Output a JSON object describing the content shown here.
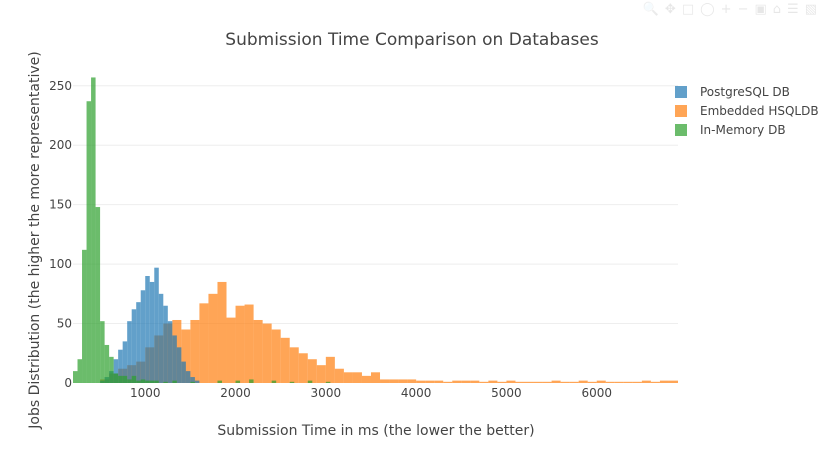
{
  "chart_data": {
    "type": "histogram",
    "title": "Submission Time Comparison on Databases",
    "xlabel": "Submission Time in ms (the lower the better)",
    "ylabel": "Jobs Distribution (the higher the more representative)",
    "xlim": [
      200,
      6900
    ],
    "ylim": [
      0,
      270
    ],
    "xticks": [
      1000,
      2000,
      3000,
      4000,
      5000,
      6000
    ],
    "yticks": [
      0,
      50,
      100,
      150,
      200,
      250
    ],
    "grid": true,
    "barmode": "overlay",
    "legend_position": "top-right",
    "series": [
      {
        "name": "PostgreSQL DB",
        "color": "#1f77b4",
        "bin_width": 50,
        "bins": [
          {
            "x0": 500,
            "v": 2
          },
          {
            "x0": 550,
            "v": 5
          },
          {
            "x0": 600,
            "v": 10
          },
          {
            "x0": 650,
            "v": 20
          },
          {
            "x0": 700,
            "v": 28
          },
          {
            "x0": 750,
            "v": 35
          },
          {
            "x0": 800,
            "v": 52
          },
          {
            "x0": 850,
            "v": 62
          },
          {
            "x0": 900,
            "v": 68
          },
          {
            "x0": 950,
            "v": 78
          },
          {
            "x0": 1000,
            "v": 90
          },
          {
            "x0": 1050,
            "v": 85
          },
          {
            "x0": 1100,
            "v": 97
          },
          {
            "x0": 1150,
            "v": 75
          },
          {
            "x0": 1200,
            "v": 65
          },
          {
            "x0": 1250,
            "v": 52
          },
          {
            "x0": 1300,
            "v": 40
          },
          {
            "x0": 1350,
            "v": 30
          },
          {
            "x0": 1400,
            "v": 18
          },
          {
            "x0": 1450,
            "v": 10
          },
          {
            "x0": 1500,
            "v": 5
          },
          {
            "x0": 1550,
            "v": 2
          }
        ]
      },
      {
        "name": "Embedded HSQLDB",
        "color": "#ff7f0e",
        "bin_width": 100,
        "bins": [
          {
            "x0": 500,
            "v": 3
          },
          {
            "x0": 600,
            "v": 8
          },
          {
            "x0": 700,
            "v": 12
          },
          {
            "x0": 800,
            "v": 15
          },
          {
            "x0": 900,
            "v": 18
          },
          {
            "x0": 1000,
            "v": 30
          },
          {
            "x0": 1100,
            "v": 40
          },
          {
            "x0": 1200,
            "v": 50
          },
          {
            "x0": 1300,
            "v": 53
          },
          {
            "x0": 1400,
            "v": 45
          },
          {
            "x0": 1500,
            "v": 53
          },
          {
            "x0": 1600,
            "v": 67
          },
          {
            "x0": 1700,
            "v": 75
          },
          {
            "x0": 1800,
            "v": 85
          },
          {
            "x0": 1900,
            "v": 55
          },
          {
            "x0": 2000,
            "v": 65
          },
          {
            "x0": 2100,
            "v": 66
          },
          {
            "x0": 2200,
            "v": 53
          },
          {
            "x0": 2300,
            "v": 50
          },
          {
            "x0": 2400,
            "v": 45
          },
          {
            "x0": 2500,
            "v": 38
          },
          {
            "x0": 2600,
            "v": 30
          },
          {
            "x0": 2700,
            "v": 25
          },
          {
            "x0": 2800,
            "v": 20
          },
          {
            "x0": 2900,
            "v": 15
          },
          {
            "x0": 3000,
            "v": 22
          },
          {
            "x0": 3100,
            "v": 12
          },
          {
            "x0": 3200,
            "v": 9
          },
          {
            "x0": 3300,
            "v": 9
          },
          {
            "x0": 3400,
            "v": 6
          },
          {
            "x0": 3500,
            "v": 9
          },
          {
            "x0": 3600,
            "v": 3
          },
          {
            "x0": 3700,
            "v": 3
          },
          {
            "x0": 3800,
            "v": 3
          },
          {
            "x0": 3900,
            "v": 3
          },
          {
            "x0": 4000,
            "v": 2
          },
          {
            "x0": 4100,
            "v": 2
          },
          {
            "x0": 4200,
            "v": 2
          },
          {
            "x0": 4300,
            "v": 1
          },
          {
            "x0": 4400,
            "v": 2
          },
          {
            "x0": 4500,
            "v": 2
          },
          {
            "x0": 4600,
            "v": 2
          },
          {
            "x0": 4700,
            "v": 1
          },
          {
            "x0": 4800,
            "v": 2
          },
          {
            "x0": 4900,
            "v": 1
          },
          {
            "x0": 5000,
            "v": 2
          },
          {
            "x0": 5100,
            "v": 1
          },
          {
            "x0": 5200,
            "v": 1
          },
          {
            "x0": 5300,
            "v": 1
          },
          {
            "x0": 5400,
            "v": 1
          },
          {
            "x0": 5500,
            "v": 2
          },
          {
            "x0": 5600,
            "v": 1
          },
          {
            "x0": 5700,
            "v": 1
          },
          {
            "x0": 5800,
            "v": 2
          },
          {
            "x0": 5900,
            "v": 1
          },
          {
            "x0": 6000,
            "v": 2
          },
          {
            "x0": 6100,
            "v": 1
          },
          {
            "x0": 6200,
            "v": 1
          },
          {
            "x0": 6300,
            "v": 1
          },
          {
            "x0": 6400,
            "v": 1
          },
          {
            "x0": 6500,
            "v": 2
          },
          {
            "x0": 6600,
            "v": 1
          },
          {
            "x0": 6700,
            "v": 2
          },
          {
            "x0": 6800,
            "v": 2
          }
        ]
      },
      {
        "name": "In-Memory DB",
        "color": "#2ca02c",
        "bin_width": 50,
        "bins": [
          {
            "x0": 200,
            "v": 10
          },
          {
            "x0": 250,
            "v": 20
          },
          {
            "x0": 300,
            "v": 112
          },
          {
            "x0": 350,
            "v": 237
          },
          {
            "x0": 400,
            "v": 257
          },
          {
            "x0": 450,
            "v": 148
          },
          {
            "x0": 500,
            "v": 52
          },
          {
            "x0": 550,
            "v": 32
          },
          {
            "x0": 600,
            "v": 22
          },
          {
            "x0": 650,
            "v": 8
          },
          {
            "x0": 700,
            "v": 6
          },
          {
            "x0": 750,
            "v": 6
          },
          {
            "x0": 800,
            "v": 3
          },
          {
            "x0": 850,
            "v": 6
          },
          {
            "x0": 900,
            "v": 2
          },
          {
            "x0": 950,
            "v": 3
          },
          {
            "x0": 1000,
            "v": 2
          },
          {
            "x0": 1050,
            "v": 2
          },
          {
            "x0": 1100,
            "v": 2
          },
          {
            "x0": 1200,
            "v": 1
          },
          {
            "x0": 1300,
            "v": 2
          },
          {
            "x0": 1500,
            "v": 1
          },
          {
            "x0": 1800,
            "v": 2
          },
          {
            "x0": 2000,
            "v": 2
          },
          {
            "x0": 2150,
            "v": 3
          },
          {
            "x0": 2400,
            "v": 2
          },
          {
            "x0": 2600,
            "v": 1
          },
          {
            "x0": 2800,
            "v": 2
          },
          {
            "x0": 3000,
            "v": 1
          }
        ]
      }
    ]
  }
}
